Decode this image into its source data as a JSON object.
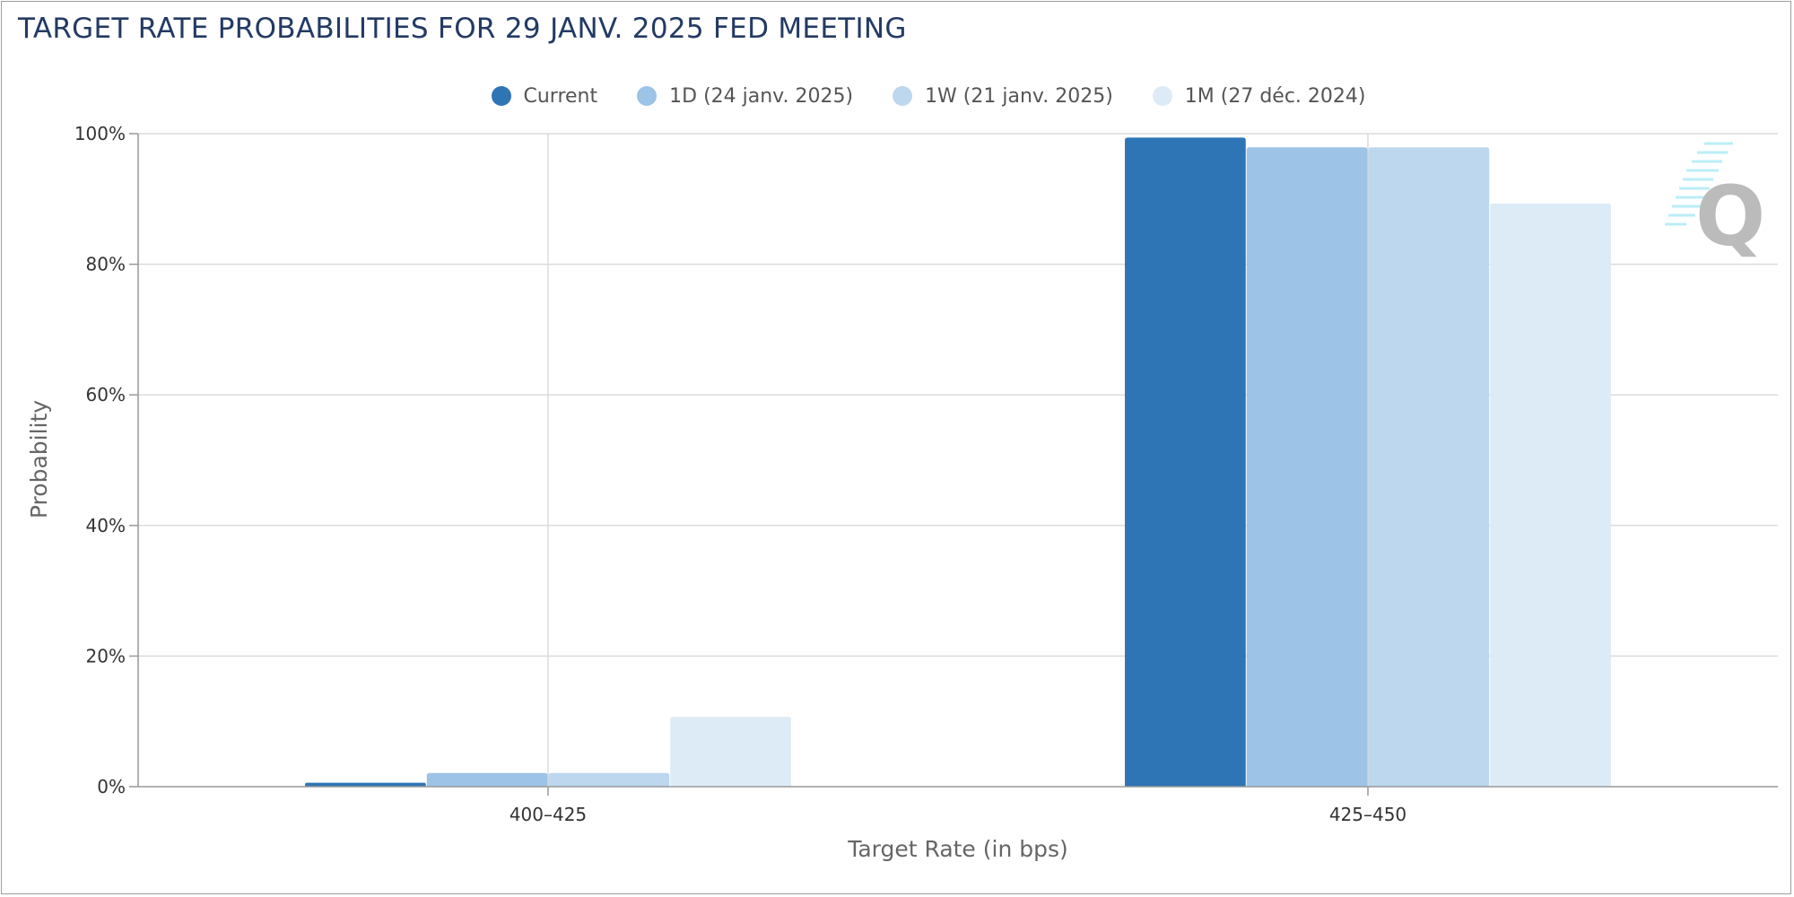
{
  "chart_data": {
    "type": "bar",
    "title": "TARGET RATE PROBABILITIES FOR 29 JANV. 2025 FED MEETING",
    "xlabel": "Target Rate (in bps)",
    "ylabel": "Probability",
    "categories": [
      "400–425",
      "425–450"
    ],
    "ylim": [
      0,
      100
    ],
    "yticks": [
      0,
      20,
      40,
      60,
      80,
      100
    ],
    "ytick_labels": [
      "0%",
      "20%",
      "40%",
      "60%",
      "80%",
      "100%"
    ],
    "grid": true,
    "legend_position": "top-center",
    "series": [
      {
        "name": "Current",
        "color": "#2e75b6",
        "values": [
          0.6,
          99.4
        ]
      },
      {
        "name": "1D (24 janv. 2025)",
        "color": "#9dc3e6",
        "values": [
          2.1,
          97.9
        ]
      },
      {
        "name": "1W (21 janv. 2025)",
        "color": "#bdd7ee",
        "values": [
          2.1,
          97.9
        ]
      },
      {
        "name": "1M (27 déc. 2024)",
        "color": "#ddebf7",
        "values": [
          10.7,
          89.3
        ]
      }
    ]
  },
  "watermark": {
    "icon": "q-logo-icon",
    "text": "Q",
    "color": "#bbbbbb"
  }
}
